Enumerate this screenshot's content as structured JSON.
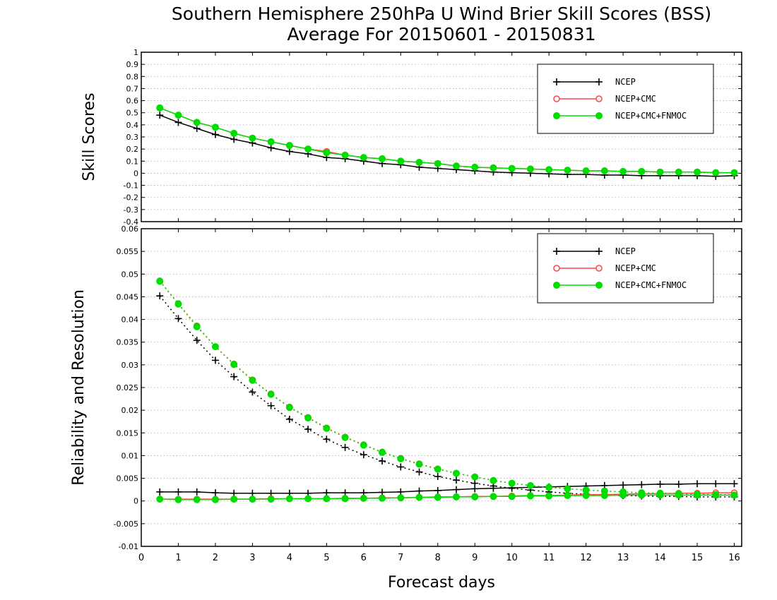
{
  "title_line1": "Southern Hemisphere 250hPa U Wind Brier Skill Scores (BSS)",
  "title_line2": "Average For 20150601 - 20150831",
  "xlabel": "Forecast days",
  "colors": {
    "ncep": "#000000",
    "ncep_cmc": "#ff4444",
    "ncep_cmc_fnmoc": "#00dd00",
    "grid": "#aaaaaa"
  },
  "legend_labels": [
    "NCEP",
    "NCEP+CMC",
    "NCEP+CMC+FNMOC"
  ],
  "chart_data": [
    {
      "type": "line",
      "ylabel": "Skill Scores",
      "xlim": [
        0,
        16.2
      ],
      "ylim": [
        -0.4,
        1
      ],
      "x_ticks": [
        0,
        1,
        2,
        3,
        4,
        5,
        6,
        7,
        8,
        9,
        10,
        11,
        12,
        13,
        14,
        15,
        16
      ],
      "y_ticks": [
        -0.4,
        -0.3,
        -0.2,
        -0.1,
        0,
        0.1,
        0.2,
        0.3,
        0.4,
        0.5,
        0.6,
        0.7,
        0.8,
        0.9,
        1
      ],
      "y_tick_labels": [
        "-0.4",
        "-0.3",
        "-0.2",
        "-0.1",
        "0",
        "0.1",
        "0.2",
        "0.3",
        "0.4",
        "0.5",
        "0.6",
        "0.7",
        "0.8",
        "0.9",
        "1"
      ],
      "grid": "horizontal dotted",
      "legend": "top-right",
      "x": [
        0.5,
        1,
        1.5,
        2,
        2.5,
        3,
        3.5,
        4,
        4.5,
        5,
        5.5,
        6,
        6.5,
        7,
        7.5,
        8,
        8.5,
        9,
        9.5,
        10,
        10.5,
        11,
        11.5,
        12,
        12.5,
        13,
        13.5,
        14,
        14.5,
        15,
        15.5,
        16
      ],
      "series": [
        {
          "name": "NCEP",
          "marker": "plus",
          "style": "solid",
          "values": [
            0.48,
            0.42,
            0.37,
            0.32,
            0.28,
            0.25,
            0.21,
            0.18,
            0.16,
            0.13,
            0.12,
            0.1,
            0.08,
            0.07,
            0.05,
            0.04,
            0.03,
            0.02,
            0.01,
            0.005,
            0,
            -0.005,
            -0.01,
            -0.01,
            -0.015,
            -0.015,
            -0.02,
            -0.02,
            -0.02,
            -0.02,
            -0.025,
            -0.02
          ]
        },
        {
          "name": "NCEP+CMC",
          "marker": "open-circle",
          "style": "solid",
          "values": [
            0.54,
            0.48,
            0.42,
            0.38,
            0.33,
            0.29,
            0.26,
            0.23,
            0.2,
            0.18,
            0.15,
            0.13,
            0.12,
            0.1,
            0.09,
            0.08,
            0.06,
            0.05,
            0.045,
            0.04,
            0.035,
            0.03,
            0.025,
            0.02,
            0.02,
            0.015,
            0.015,
            0.01,
            0.01,
            0.01,
            0.005,
            0.005
          ]
        },
        {
          "name": "NCEP+CMC+FNMOC",
          "marker": "filled-circle",
          "style": "solid",
          "values": [
            0.54,
            0.48,
            0.42,
            0.38,
            0.33,
            0.29,
            0.26,
            0.23,
            0.2,
            0.17,
            0.15,
            0.13,
            0.12,
            0.1,
            0.09,
            0.08,
            0.06,
            0.05,
            0.045,
            0.04,
            0.035,
            0.03,
            0.025,
            0.02,
            0.02,
            0.015,
            0.015,
            0.01,
            0.01,
            0.01,
            0.005,
            0.005
          ]
        }
      ]
    },
    {
      "type": "line",
      "ylabel": "Reliability and Resolution",
      "xlim": [
        0,
        16.2
      ],
      "ylim": [
        -0.01,
        0.06
      ],
      "x_ticks": [
        0,
        1,
        2,
        3,
        4,
        5,
        6,
        7,
        8,
        9,
        10,
        11,
        12,
        13,
        14,
        15,
        16
      ],
      "y_ticks": [
        -0.01,
        -0.005,
        0,
        0.005,
        0.01,
        0.015,
        0.02,
        0.025,
        0.03,
        0.035,
        0.04,
        0.045,
        0.05,
        0.055,
        0.06
      ],
      "y_tick_labels": [
        "-0.01",
        "-0.005",
        "0",
        "0.005",
        "0.01",
        "0.015",
        "0.02",
        "0.025",
        "0.03",
        "0.035",
        "0.04",
        "0.045",
        "0.05",
        "0.055",
        "0.06"
      ],
      "grid": "horizontal dotted",
      "legend": "top-right",
      "x": [
        0.5,
        1,
        1.5,
        2,
        2.5,
        3,
        3.5,
        4,
        4.5,
        5,
        5.5,
        6,
        6.5,
        7,
        7.5,
        8,
        8.5,
        9,
        9.5,
        10,
        10.5,
        11,
        11.5,
        12,
        12.5,
        13,
        13.5,
        14,
        14.5,
        15,
        15.5,
        16
      ],
      "series": [
        {
          "name": "NCEP",
          "legend_index": 0,
          "marker": "plus",
          "style": "dotted",
          "values": [
            0.0452,
            0.0402,
            0.0354,
            0.031,
            0.0274,
            0.024,
            0.021,
            0.018,
            0.0158,
            0.0136,
            0.0118,
            0.0102,
            0.0088,
            0.0075,
            0.0064,
            0.0054,
            0.0046,
            0.0039,
            0.0033,
            0.0028,
            0.0024,
            0.002,
            0.0017,
            0.0015,
            0.0013,
            0.0012,
            0.0011,
            0.001,
            0.001,
            0.0009,
            0.0009,
            0.0009
          ]
        },
        {
          "name": "NCEP",
          "legend_index": 0,
          "marker": "plus",
          "style": "solid",
          "values": [
            0.002,
            0.002,
            0.002,
            0.0018,
            0.0017,
            0.0017,
            0.0017,
            0.0017,
            0.0017,
            0.0018,
            0.0018,
            0.0018,
            0.0019,
            0.002,
            0.0022,
            0.0023,
            0.0025,
            0.0027,
            0.0028,
            0.0029,
            0.003,
            0.0031,
            0.0032,
            0.0033,
            0.0034,
            0.0035,
            0.0036,
            0.0037,
            0.0037,
            0.0038,
            0.0038,
            0.0038
          ]
        },
        {
          "name": "NCEP+CMC",
          "legend_index": 1,
          "marker": "open-circle",
          "style": "dotted",
          "values": [
            0.0485,
            0.0435,
            0.0386,
            0.034,
            0.0302,
            0.0267,
            0.0236,
            0.0207,
            0.0184,
            0.0161,
            0.0141,
            0.0124,
            0.0108,
            0.0094,
            0.0082,
            0.0071,
            0.0061,
            0.0053,
            0.0045,
            0.0039,
            0.0034,
            0.003,
            0.0027,
            0.0024,
            0.0022,
            0.002,
            0.0018,
            0.0017,
            0.0016,
            0.0015,
            0.0014,
            0.0014
          ]
        },
        {
          "name": "NCEP+CMC",
          "legend_index": 1,
          "marker": "open-circle",
          "style": "solid",
          "values": [
            0.0004,
            0.0004,
            0.0004,
            0.0004,
            0.0004,
            0.0004,
            0.0005,
            0.0005,
            0.0005,
            0.0005,
            0.0006,
            0.0006,
            0.0007,
            0.0007,
            0.0008,
            0.0009,
            0.0009,
            0.001,
            0.001,
            0.0011,
            0.0012,
            0.0012,
            0.0013,
            0.0014,
            0.0014,
            0.0015,
            0.0016,
            0.0016,
            0.0017,
            0.0017,
            0.0018,
            0.0018
          ]
        },
        {
          "name": "NCEP+CMC+FNMOC",
          "legend_index": 2,
          "marker": "filled-circle",
          "style": "dotted",
          "values": [
            0.0484,
            0.0434,
            0.0384,
            0.034,
            0.0301,
            0.0266,
            0.0235,
            0.0206,
            0.0183,
            0.016,
            0.014,
            0.0123,
            0.0107,
            0.0093,
            0.0081,
            0.007,
            0.0061,
            0.0053,
            0.0045,
            0.0039,
            0.0034,
            0.003,
            0.0027,
            0.0024,
            0.0022,
            0.002,
            0.0018,
            0.0017,
            0.0016,
            0.0015,
            0.0014,
            0.0013
          ]
        },
        {
          "name": "NCEP+CMC+FNMOC",
          "legend_index": 2,
          "marker": "filled-circle",
          "style": "solid",
          "values": [
            0.0004,
            0.0003,
            0.0003,
            0.0003,
            0.0004,
            0.0004,
            0.0004,
            0.0005,
            0.0005,
            0.0005,
            0.0005,
            0.0006,
            0.0006,
            0.0007,
            0.0008,
            0.0008,
            0.0009,
            0.0009,
            0.001,
            0.001,
            0.0011,
            0.0011,
            0.0012,
            0.0012,
            0.0012,
            0.0013,
            0.0013,
            0.0013,
            0.0013,
            0.0013,
            0.0013,
            0.0013
          ]
        }
      ]
    }
  ]
}
